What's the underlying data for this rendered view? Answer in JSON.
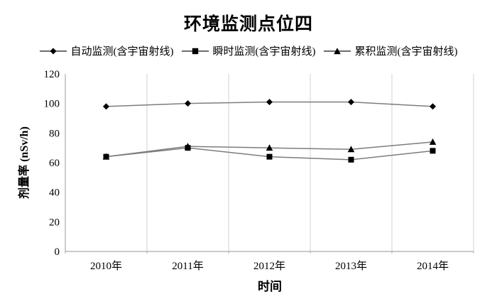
{
  "chart_data": {
    "type": "line",
    "title": "环境监测点位四",
    "xlabel": "时间",
    "ylabel": "剂量率 (nSv/h)",
    "categories": [
      "2010年",
      "2011年",
      "2012年",
      "2013年",
      "2014年"
    ],
    "series": [
      {
        "name": "自动监测(含宇宙射线)",
        "marker": "diamond",
        "values": [
          98,
          100,
          101,
          101,
          98
        ]
      },
      {
        "name": "瞬时监测(含宇宙射线)",
        "marker": "square",
        "values": [
          64,
          70,
          64,
          62,
          68
        ]
      },
      {
        "name": "累积监测(含宇宙射线)",
        "marker": "triangle",
        "values": [
          64,
          71,
          70,
          69,
          74
        ]
      }
    ],
    "ylim": [
      0,
      120
    ],
    "y_ticks": [
      0,
      20,
      40,
      60,
      80,
      100,
      120
    ],
    "grid": "vertical-only",
    "legend_position": "top",
    "colors": {
      "line": "#7d7d7d",
      "marker": "#000000",
      "gridline": "#d2d2d2",
      "axis": "#ababab",
      "legend_line": "#3f3f3f",
      "text": "#000000"
    }
  }
}
